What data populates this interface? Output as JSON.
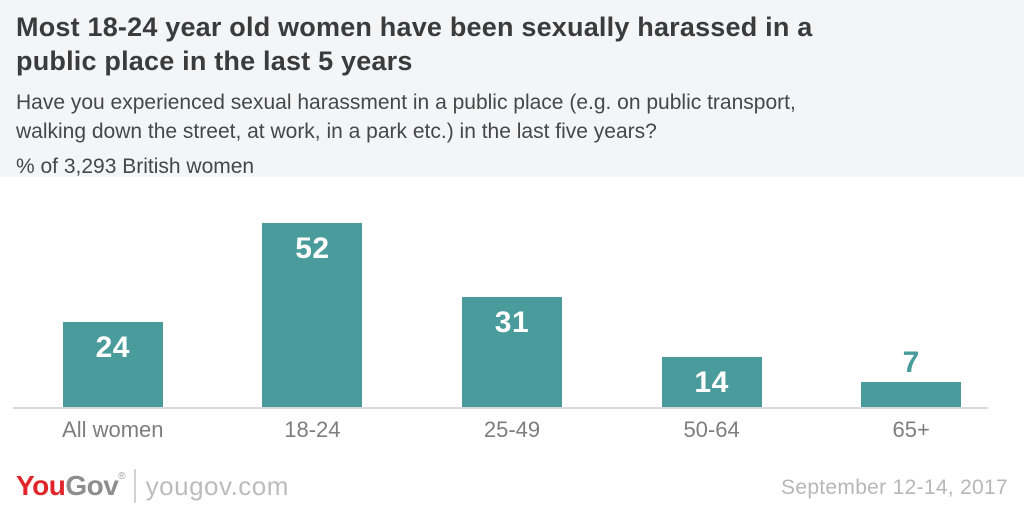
{
  "header": {
    "title_line1": "Most 18-24 year old women have been sexually harassed in a",
    "title_line2": "public place in the last 5 years",
    "subtitle_line1": "Have you experienced sexual harassment in a public place (e.g. on public transport,",
    "subtitle_line2": "walking down the street, at work, in a park etc.) in the last five years?",
    "sample_note": "% of 3,293 British women"
  },
  "chart_data": {
    "type": "bar",
    "title": "Most 18-24 year old women have been sexually harassed in a public place in the last 5 years",
    "question": "Have you experienced sexual harassment in a public place (e.g. on public transport, walking down the street, at work, in a park etc.) in the last five years?",
    "sample": "% of 3,293 British women",
    "categories": [
      "All women",
      "18-24",
      "25-49",
      "50-64",
      "65+"
    ],
    "values": [
      24,
      52,
      31,
      14,
      7
    ],
    "unit": "%",
    "xlabel": "",
    "ylabel": "",
    "ylim": [
      0,
      62
    ],
    "grid": false,
    "legend": "none",
    "bar_color": "#4a9b9c",
    "value_label_inside_color": "#ffffff",
    "value_label_outside_color": "#4a9b9c",
    "axis_line_color": "#d9d9d9",
    "category_label_color": "#7e7e7e"
  },
  "footer": {
    "logo_you": "You",
    "logo_gov": "Gov",
    "logo_reg": "®",
    "website": "yougov.com",
    "date": "September 12-14, 2017"
  },
  "colors": {
    "header_bg": "#f4f5f7",
    "page_bg": "#ffffff",
    "title": "#3b3b3b",
    "subtitle": "#474747",
    "logo_red": "#e0262a",
    "logo_gray": "#8e8e8e",
    "muted_gray": "#b7b7b7"
  }
}
